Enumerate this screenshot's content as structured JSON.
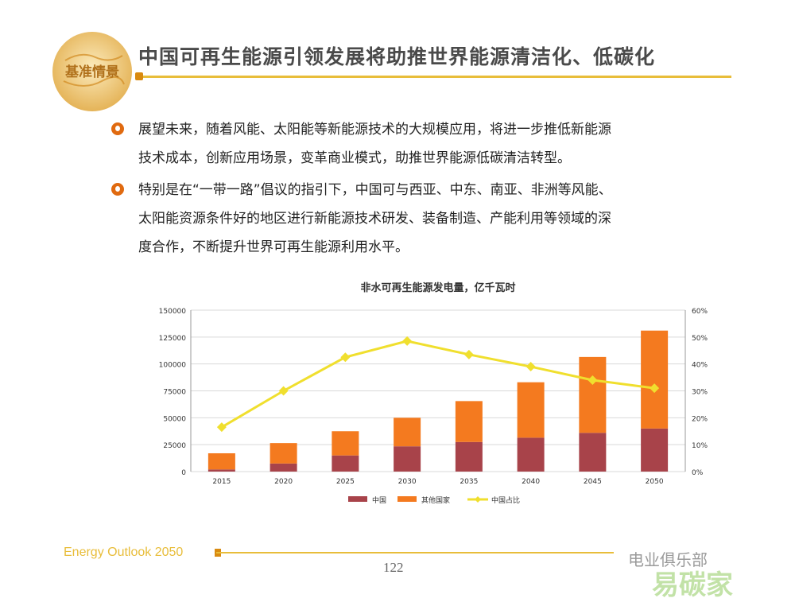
{
  "header": {
    "logo_text": "基准情景",
    "title": "中国可再生能源引领发展将助推世界能源清洁化、低碳化"
  },
  "bullets": [
    {
      "lines": [
        "展望未来，随着风能、太阳能等新能源技术的大规模应用，将进一步推低新能源",
        "技术成本，创新应用场景，变革商业模式，助推世界能源低碳清洁转型。"
      ]
    },
    {
      "lines": [
        "特别是在“一带一路”倡议的指引下，中国可与西亚、中东、南亚、非洲等风能、",
        "太阳能资源条件好的地区进行新能源技术研发、装备制造、产能利用等领域的深",
        "度合作，不断提升世界可再生能源利用水平。"
      ]
    }
  ],
  "colors": {
    "china": "#a8434a",
    "others": "#f47a1f",
    "share": "#f0df2e",
    "accent": "#e8bd3a"
  },
  "chart_data": {
    "type": "bar",
    "title": "非水可再生能源发电量，亿千瓦时",
    "categories": [
      "2015",
      "2020",
      "2025",
      "2030",
      "2035",
      "2040",
      "2045",
      "2050"
    ],
    "series": [
      {
        "name": "中国",
        "type": "bar",
        "stack": "total",
        "values": [
          2000,
          7500,
          15000,
          23500,
          27500,
          31500,
          36000,
          40000
        ]
      },
      {
        "name": "其他国家",
        "type": "bar",
        "stack": "total",
        "values": [
          15000,
          19000,
          22500,
          26500,
          38000,
          51500,
          70500,
          91000
        ]
      },
      {
        "name": "中国占比",
        "type": "line",
        "axis": "right",
        "values": [
          16.5,
          30,
          42.5,
          48.5,
          43.5,
          39,
          34,
          31
        ]
      }
    ],
    "left_axis": {
      "min": 0,
      "max": 150000,
      "ticks": [
        "0",
        "25000",
        "50000",
        "75000",
        "100000",
        "125000",
        "150000"
      ]
    },
    "right_axis": {
      "min": 0,
      "max": 60,
      "ticks": [
        "0%",
        "10%",
        "20%",
        "30%",
        "40%",
        "50%",
        "60%"
      ]
    },
    "grid": true,
    "legend_position": "bottom"
  },
  "footer": {
    "brand": "Energy Outlook 2050",
    "page_number": "122",
    "watermark": "电业俱乐部",
    "watermark2": "易碳家"
  }
}
